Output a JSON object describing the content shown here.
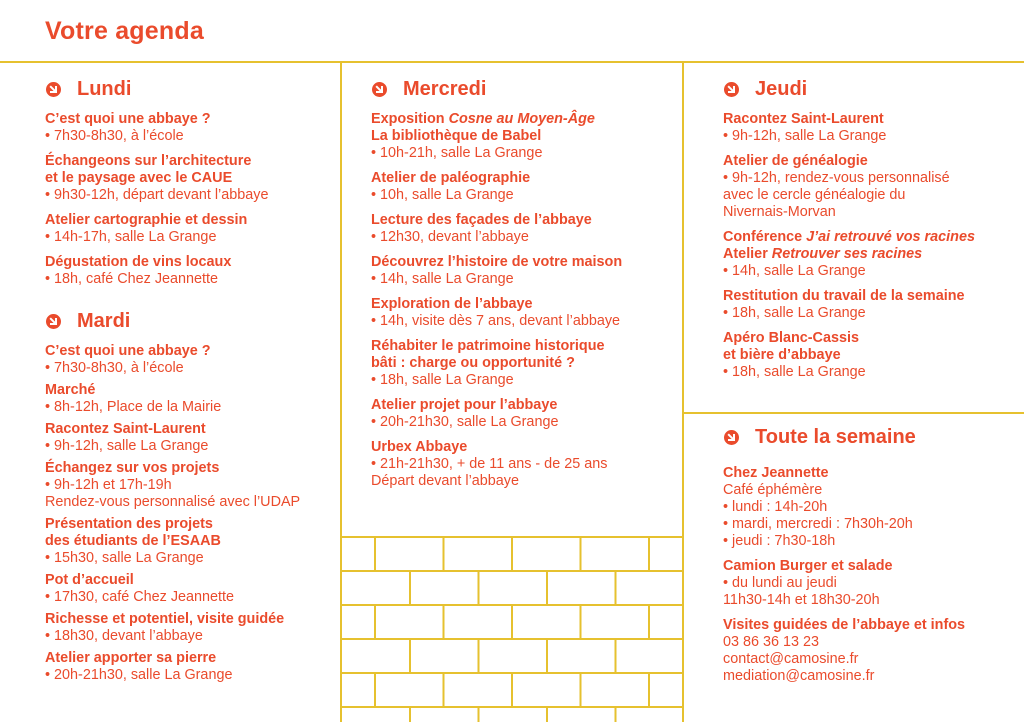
{
  "page_title": "Votre agenda",
  "colors": {
    "text": "#ea4b2c",
    "lines": "#e6c12f"
  },
  "icon": "arrow-circle-down-right-icon",
  "sections": [
    {
      "id": "lundi",
      "heading": "Lundi",
      "events": [
        {
          "title": [
            [
              {
                "t": "C’est quoi une abbaye ?"
              }
            ]
          ],
          "details": [
            "• 7h30-8h30, à l’école"
          ]
        },
        {
          "title": [
            [
              {
                "t": "Échangeons sur l’architecture"
              }
            ],
            [
              {
                "t": "et le paysage avec le CAUE"
              }
            ]
          ],
          "details": [
            "• 9h30-12h, départ devant l’abbaye"
          ]
        },
        {
          "title": [
            [
              {
                "t": "Atelier cartographie et dessin"
              }
            ]
          ],
          "details": [
            "• 14h-17h, salle La Grange"
          ]
        },
        {
          "title": [
            [
              {
                "t": "Dégustation de vins locaux"
              }
            ]
          ],
          "details": [
            "• 18h, café Chez Jeannette"
          ]
        }
      ]
    },
    {
      "id": "mardi",
      "heading": "Mardi",
      "events": [
        {
          "title": [
            [
              {
                "t": "C’est quoi une abbaye ?"
              }
            ]
          ],
          "details": [
            "• 7h30-8h30, à l’école"
          ]
        },
        {
          "title": [
            [
              {
                "t": "Marché"
              }
            ]
          ],
          "details": [
            "• 8h-12h, Place de la Mairie"
          ]
        },
        {
          "title": [
            [
              {
                "t": "Racontez Saint-Laurent"
              }
            ]
          ],
          "details": [
            "• 9h-12h, salle La Grange"
          ]
        },
        {
          "title": [
            [
              {
                "t": "Échangez sur vos projets"
              }
            ]
          ],
          "details": [
            "• 9h-12h et 17h-19h",
            "Rendez-vous personnalisé avec l’UDAP"
          ]
        },
        {
          "title": [
            [
              {
                "t": "Présentation des projets"
              }
            ],
            [
              {
                "t": "des étudiants de l’ESAAB"
              }
            ]
          ],
          "details": [
            "• 15h30, salle La Grange"
          ]
        },
        {
          "title": [
            [
              {
                "t": "Pot d’accueil"
              }
            ]
          ],
          "details": [
            "• 17h30, café Chez Jeannette"
          ]
        },
        {
          "title": [
            [
              {
                "t": "Richesse et potentiel, visite guidée"
              }
            ]
          ],
          "details": [
            "• 18h30, devant l’abbaye"
          ]
        },
        {
          "title": [
            [
              {
                "t": "Atelier apporter sa pierre"
              }
            ]
          ],
          "details": [
            "• 20h-21h30, salle La Grange"
          ]
        }
      ]
    },
    {
      "id": "mercredi",
      "heading": "Mercredi",
      "events": [
        {
          "title": [
            [
              {
                "t": "Exposition "
              },
              {
                "t": "Cosne au Moyen-Âge",
                "i": true
              }
            ],
            [
              {
                "t": "La bibliothèque de Babel"
              }
            ]
          ],
          "details": [
            "• 10h-21h, salle La Grange"
          ]
        },
        {
          "title": [
            [
              {
                "t": "Atelier de paléographie"
              }
            ]
          ],
          "details": [
            "• 10h, salle La Grange"
          ]
        },
        {
          "title": [
            [
              {
                "t": "Lecture des façades de l’abbaye"
              }
            ]
          ],
          "details": [
            "• 12h30, devant l’abbaye"
          ]
        },
        {
          "title": [
            [
              {
                "t": "Découvrez l’histoire de votre maison"
              }
            ]
          ],
          "details": [
            "• 14h, salle La Grange"
          ]
        },
        {
          "title": [
            [
              {
                "t": "Exploration de l’abbaye"
              }
            ]
          ],
          "details": [
            "• 14h, visite dès 7 ans, devant l’abbaye"
          ]
        },
        {
          "title": [
            [
              {
                "t": "Réhabiter le patrimoine historique"
              }
            ],
            [
              {
                "t": "bâti : charge ou opportunité ?"
              }
            ]
          ],
          "details": [
            "• 18h, salle La Grange"
          ]
        },
        {
          "title": [
            [
              {
                "t": "Atelier projet pour l’abbaye"
              }
            ]
          ],
          "details": [
            "• 20h-21h30, salle La Grange"
          ]
        },
        {
          "title": [
            [
              {
                "t": "Urbex Abbaye"
              }
            ]
          ],
          "details": [
            "• 21h-21h30, + de 11 ans - de 25 ans",
            "Départ devant l’abbaye"
          ]
        }
      ]
    },
    {
      "id": "jeudi",
      "heading": "Jeudi",
      "events": [
        {
          "title": [
            [
              {
                "t": "Racontez Saint-Laurent"
              }
            ]
          ],
          "details": [
            "• 9h-12h, salle La Grange"
          ]
        },
        {
          "title": [
            [
              {
                "t": "Atelier de généalogie"
              }
            ]
          ],
          "details": [
            "• 9h-12h, rendez-vous personnalisé",
            "avec le cercle généalogie du",
            "Nivernais-Morvan"
          ]
        },
        {
          "title": [
            [
              {
                "t": "Conférence "
              },
              {
                "t": "J’ai retrouvé vos racines",
                "i": true
              }
            ],
            [
              {
                "t": "Atelier "
              },
              {
                "t": "Retrouver ses racines",
                "i": true
              }
            ]
          ],
          "details": [
            "• 14h, salle La Grange"
          ]
        },
        {
          "title": [
            [
              {
                "t": "Restitution du travail de la semaine"
              }
            ]
          ],
          "details": [
            "• 18h, salle La Grange"
          ]
        },
        {
          "title": [
            [
              {
                "t": "Apéro Blanc-Cassis"
              }
            ],
            [
              {
                "t": "et bière d’abbaye"
              }
            ]
          ],
          "details": [
            "• 18h, salle La Grange"
          ]
        }
      ]
    },
    {
      "id": "semaine",
      "heading": "Toute la semaine",
      "events": [
        {
          "title": [
            [
              {
                "t": "Chez Jeannette"
              }
            ]
          ],
          "details": [
            "Café éphémère",
            "• lundi : 14h-20h",
            "• mardi, mercredi : 7h30h-20h",
            "• jeudi : 7h30-18h"
          ]
        },
        {
          "title": [
            [
              {
                "t": "Camion Burger et salade"
              }
            ]
          ],
          "details": [
            "• du lundi au jeudi",
            "11h30-14h et 18h30-20h"
          ]
        },
        {
          "title": [
            [
              {
                "t": "Visites guidées de l’abbaye et infos"
              }
            ]
          ],
          "details": [
            "03 86 36 13 23",
            "contact@camosine.fr",
            "mediation@camosine.fr"
          ]
        }
      ]
    }
  ]
}
